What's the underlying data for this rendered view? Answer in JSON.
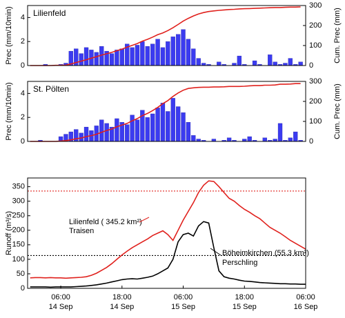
{
  "chart_data": [
    {
      "type": "bar",
      "title": "Lilienfeld",
      "ylabel": "Prec (mm/10min)",
      "y2label": "Cum. Prec (mm)",
      "xlim": [
        -0.5,
        54
      ],
      "ylim": [
        0,
        5
      ],
      "yticks": [
        0,
        2,
        4
      ],
      "y2lim": [
        0,
        300
      ],
      "y2ticks": [
        0,
        100,
        200,
        300
      ],
      "x": [
        0,
        1,
        2,
        3,
        4,
        5,
        6,
        7,
        8,
        9,
        10,
        11,
        12,
        13,
        14,
        15,
        16,
        17,
        18,
        19,
        20,
        21,
        22,
        23,
        24,
        25,
        26,
        27,
        28,
        29,
        30,
        31,
        32,
        33,
        34,
        35,
        36,
        37,
        38,
        39,
        40,
        41,
        42,
        43,
        44,
        45,
        46,
        47,
        48,
        49,
        50,
        51,
        52,
        53
      ],
      "series": [
        {
          "name": "Prec",
          "color": "#3b3bf0",
          "values": [
            0,
            0,
            0,
            0.1,
            0,
            0,
            0.1,
            0.2,
            1.2,
            1.4,
            1.0,
            1.5,
            1.3,
            1.1,
            1.6,
            1.2,
            1.0,
            1.3,
            1.4,
            1.8,
            1.5,
            1.7,
            2.0,
            1.6,
            1.8,
            2.2,
            1.5,
            2.0,
            2.4,
            2.6,
            3.0,
            2.2,
            1.4,
            0.6,
            0.2,
            0.1,
            0,
            0.3,
            0.1,
            0,
            0.2,
            0.8,
            0.1,
            0,
            0.4,
            0.1,
            0,
            0.9,
            0.3,
            0.1,
            0.2,
            0.6,
            0.1,
            0.3
          ]
        },
        {
          "name": "Cum. Prec",
          "color": "#e0201c",
          "axis": "y2",
          "values": [
            0,
            0,
            0,
            0,
            0,
            1,
            1,
            2,
            8,
            15,
            22,
            29,
            37,
            44,
            52,
            59,
            66,
            74,
            82,
            92,
            101,
            110,
            122,
            131,
            142,
            154,
            163,
            175,
            189,
            205,
            222,
            236,
            248,
            258,
            265,
            270,
            273,
            276,
            278,
            280,
            281,
            283,
            284,
            285,
            286,
            287,
            288,
            289,
            290,
            290,
            291,
            292,
            292,
            293
          ]
        }
      ]
    },
    {
      "type": "bar",
      "title": "St. Pölten",
      "ylabel": "Prec (mm/10min)",
      "y2label": "Cum. Prec (mm)",
      "xlim": [
        -0.5,
        54
      ],
      "ylim": [
        0,
        5
      ],
      "yticks": [
        0,
        2,
        4
      ],
      "y2lim": [
        0,
        300
      ],
      "y2ticks": [
        0,
        100,
        200,
        300
      ],
      "x": [
        0,
        1,
        2,
        3,
        4,
        5,
        6,
        7,
        8,
        9,
        10,
        11,
        12,
        13,
        14,
        15,
        16,
        17,
        18,
        19,
        20,
        21,
        22,
        23,
        24,
        25,
        26,
        27,
        28,
        29,
        30,
        31,
        32,
        33,
        34,
        35,
        36,
        37,
        38,
        39,
        40,
        41,
        42,
        43,
        44,
        45,
        46,
        47,
        48,
        49,
        50,
        51,
        52,
        53
      ],
      "series": [
        {
          "name": "Prec",
          "color": "#3b3bf0",
          "values": [
            0,
            0,
            0.1,
            0,
            0,
            0,
            0.4,
            0.6,
            0.8,
            1.0,
            0.7,
            1.2,
            0.9,
            1.3,
            1.8,
            1.5,
            1.2,
            1.9,
            1.6,
            1.4,
            2.2,
            1.8,
            2.6,
            2.0,
            2.3,
            2.8,
            3.2,
            2.5,
            3.6,
            2.9,
            2.4,
            1.6,
            0.5,
            0.2,
            0.1,
            0,
            0.2,
            0,
            0.1,
            0.3,
            0.1,
            0,
            0.2,
            0.4,
            0.1,
            0,
            0.3,
            0.1,
            0.2,
            1.5,
            0.1,
            0.3,
            0.8,
            0.1
          ]
        },
        {
          "name": "Cum. Prec",
          "color": "#e0201c",
          "axis": "y2",
          "values": [
            0,
            0,
            0,
            0,
            0,
            0,
            2,
            4,
            8,
            13,
            17,
            24,
            29,
            36,
            46,
            55,
            62,
            73,
            82,
            90,
            103,
            114,
            129,
            140,
            154,
            170,
            189,
            204,
            225,
            242,
            256,
            265,
            268,
            270,
            271,
            271,
            272,
            272,
            273,
            275,
            275,
            275,
            276,
            278,
            279,
            279,
            281,
            281,
            282,
            286,
            286,
            287,
            289,
            289
          ]
        }
      ]
    },
    {
      "type": "line",
      "ylabel": "Runoff (m³/s)",
      "xlim": [
        -0.5,
        54
      ],
      "ylim": [
        0,
        380
      ],
      "yticks": [
        0,
        50,
        100,
        150,
        200,
        250,
        300,
        350
      ],
      "xticks": [
        {
          "value": 6,
          "label": "06:00"
        },
        {
          "value": 18,
          "label": "18:00"
        },
        {
          "value": 30,
          "label": "06:00"
        },
        {
          "value": 42,
          "label": "18:00"
        },
        {
          "value": 54,
          "label": "06:00"
        }
      ],
      "xtick_dates": [
        "14 Sep",
        "14 Sep",
        "15 Sep",
        "15 Sep",
        "16 Sep"
      ],
      "hlines": [
        {
          "value": 335,
          "color": "#e0201c"
        },
        {
          "value": 113,
          "color": "#000000"
        }
      ],
      "annotations": [
        {
          "text": "Lilienfeld ( 345.2 km²)",
          "color": "#e0201c"
        },
        {
          "text": "Traisen",
          "color": "#e0201c"
        },
        {
          "text": "Böheimkirchen (55.3 km²)",
          "color": "#000000"
        },
        {
          "text": "Perschling",
          "color": "#000000"
        }
      ],
      "x": [
        0,
        1,
        2,
        3,
        4,
        5,
        6,
        7,
        8,
        9,
        10,
        11,
        12,
        13,
        14,
        15,
        16,
        17,
        18,
        19,
        20,
        21,
        22,
        23,
        24,
        25,
        26,
        27,
        28,
        29,
        30,
        31,
        32,
        33,
        34,
        35,
        36,
        37,
        38,
        39,
        40,
        41,
        42,
        43,
        44,
        45,
        46,
        47,
        48,
        49,
        50,
        51,
        52,
        53,
        54
      ],
      "series": [
        {
          "name": "Traisen",
          "color": "#e0201c",
          "values": [
            36,
            37,
            37,
            36,
            37,
            36,
            36,
            35,
            36,
            37,
            38,
            40,
            45,
            52,
            62,
            72,
            85,
            100,
            115,
            128,
            140,
            150,
            160,
            170,
            182,
            190,
            198,
            185,
            165,
            200,
            235,
            265,
            295,
            330,
            355,
            370,
            368,
            350,
            330,
            310,
            300,
            285,
            272,
            262,
            250,
            240,
            225,
            210,
            200,
            190,
            178,
            165,
            155,
            145,
            135
          ]
        },
        {
          "name": "Perschling",
          "color": "#000000",
          "values": [
            5,
            5,
            5,
            5,
            4,
            5,
            5,
            5,
            5,
            6,
            7,
            8,
            10,
            12,
            15,
            18,
            22,
            26,
            30,
            32,
            33,
            32,
            35,
            38,
            42,
            50,
            60,
            70,
            100,
            160,
            185,
            190,
            180,
            215,
            230,
            225,
            140,
            60,
            40,
            35,
            32,
            28,
            25,
            24,
            22,
            20,
            19,
            18,
            17,
            16,
            16,
            15,
            15,
            14,
            14
          ]
        }
      ]
    }
  ]
}
